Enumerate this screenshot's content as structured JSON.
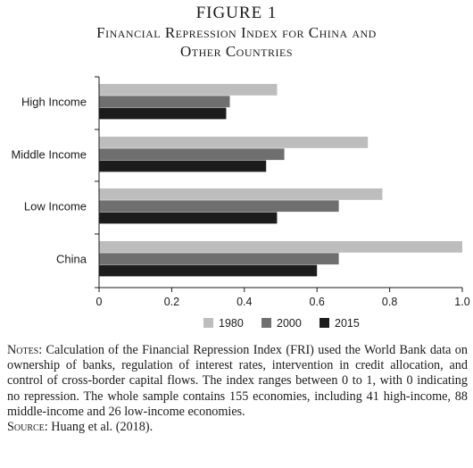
{
  "figure": {
    "label": "FIGURE 1",
    "title_line1": "Financial Repression Index for China and",
    "title_line2": "Other Countries"
  },
  "chart_data": {
    "type": "bar",
    "orientation": "horizontal",
    "categories": [
      "High Income",
      "Middle Income",
      "Low Income",
      "China"
    ],
    "series": [
      {
        "name": "1980",
        "color": "#bdbdbd",
        "values": [
          0.49,
          0.74,
          0.78,
          1.0
        ]
      },
      {
        "name": "2000",
        "color": "#6f6f6f",
        "values": [
          0.36,
          0.51,
          0.66,
          0.66
        ]
      },
      {
        "name": "2015",
        "color": "#1c1c1c",
        "values": [
          0.35,
          0.46,
          0.49,
          0.6
        ]
      }
    ],
    "xlim": [
      0,
      1.0
    ],
    "xticks": [
      "0",
      "0.2",
      "0.4",
      "0.6",
      "0.8",
      "1.0"
    ],
    "grid": false,
    "legend_position": "bottom"
  },
  "notes": {
    "notes_label": "Notes",
    "notes_text": ": Calculation of the Financial Repression Index (FRI) used the World Bank data on ownership of banks, regulation of interest rates, intervention in credit allocation, and control of cross-border capital flows. The index ranges between 0 to 1, with 0 indicating no repression. The whole sample contains 155 economies, including 41 high-income, 88 middle-income and 26 low-income economies.",
    "source_label": "Source",
    "source_text": ": Huang et al. (2018)."
  }
}
